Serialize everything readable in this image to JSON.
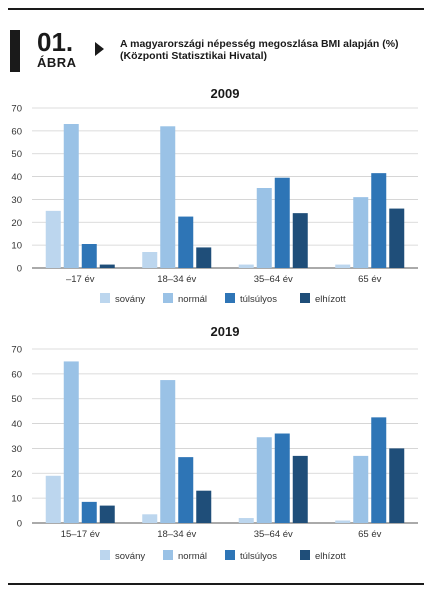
{
  "header": {
    "figure_number": "01.",
    "figure_label": "ÁBRA",
    "title_line1": "A magyarországi népesség megoszlása BMI alapján (%)",
    "title_line2": "(Központi Statisztikai Hivatal)"
  },
  "colors": {
    "sovány": "#bcd6ee",
    "normál": "#9ac2e6",
    "túlsúlyos": "#2e75b6",
    "elhízott": "#1f4e79"
  },
  "chart_data": [
    {
      "type": "bar",
      "title": "2009",
      "categories": [
        "–17 év",
        "18–34 év",
        "35–64 év",
        "65 év"
      ],
      "ylim": [
        0,
        70
      ],
      "yticks": [
        0,
        10,
        20,
        30,
        40,
        50,
        60,
        70
      ],
      "grid": true,
      "legend_position": "bottom",
      "series": [
        {
          "name": "sovány",
          "values": [
            25,
            7,
            1.5,
            1.5
          ]
        },
        {
          "name": "normál",
          "values": [
            63,
            62,
            35,
            31
          ]
        },
        {
          "name": "túlsúlyos",
          "values": [
            10.5,
            22.5,
            39.5,
            41.5
          ]
        },
        {
          "name": "elhízott",
          "values": [
            1.5,
            9,
            24,
            26
          ]
        }
      ]
    },
    {
      "type": "bar",
      "title": "2019",
      "categories": [
        "15–17 év",
        "18–34 év",
        "35–64 év",
        "65 év"
      ],
      "ylim": [
        0,
        70
      ],
      "yticks": [
        0,
        10,
        20,
        30,
        40,
        50,
        60,
        70
      ],
      "grid": true,
      "legend_position": "bottom",
      "series": [
        {
          "name": "sovány",
          "values": [
            19,
            3.5,
            2,
            1
          ]
        },
        {
          "name": "normál",
          "values": [
            65,
            57.5,
            34.5,
            27
          ]
        },
        {
          "name": "túlsúlyos",
          "values": [
            8.5,
            26.5,
            36,
            42.5
          ]
        },
        {
          "name": "elhízott",
          "values": [
            7,
            13,
            27,
            30
          ]
        }
      ]
    }
  ]
}
